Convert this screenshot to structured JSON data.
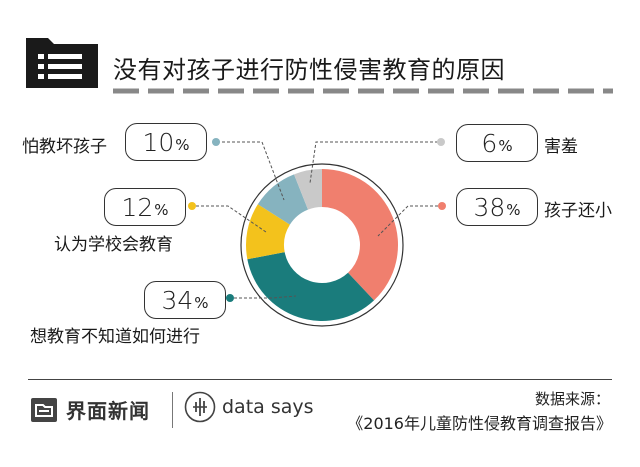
{
  "header": {
    "title": "没有对孩子进行防性侵害教育的原因",
    "icon": "list-card-icon"
  },
  "chart_data": {
    "type": "pie",
    "variant": "donut",
    "slices": [
      {
        "label": "孩子还小",
        "value": 38,
        "display": "38",
        "unit": "%",
        "color": "#f07f6e"
      },
      {
        "label": "想教育不知道如何进行",
        "value": 34,
        "display": "34",
        "unit": "%",
        "color": "#1a7c7c"
      },
      {
        "label": "认为学校会教育",
        "value": 12,
        "display": "12",
        "unit": "%",
        "color": "#f3c21c"
      },
      {
        "label": "怕教坏孩子",
        "value": 10,
        "display": "10",
        "unit": "%",
        "color": "#86b3bf"
      },
      {
        "label": "害羞",
        "value": 6,
        "display": "6",
        "unit": "%",
        "color": "#c9c9c9"
      }
    ]
  },
  "footer": {
    "brand": "界面新闻",
    "partner": "data says",
    "source_label": "数据来源：",
    "source_text": "《2016年儿童防性侵教育调查报告》"
  }
}
